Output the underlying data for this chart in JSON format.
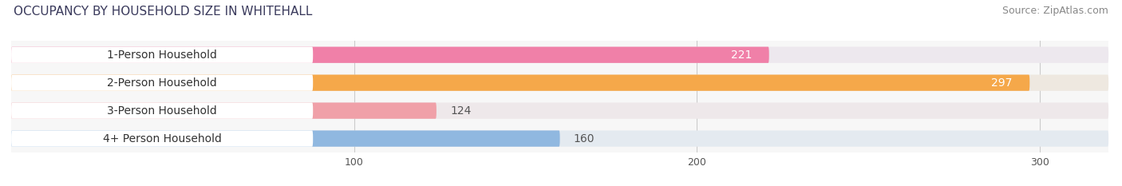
{
  "title": "OCCUPANCY BY HOUSEHOLD SIZE IN WHITEHALL",
  "source": "Source: ZipAtlas.com",
  "categories": [
    "1-Person Household",
    "2-Person Household",
    "3-Person Household",
    "4+ Person Household"
  ],
  "values": [
    221,
    297,
    124,
    160
  ],
  "bar_colors": [
    "#f080a8",
    "#f5a84a",
    "#f0a0a8",
    "#90b8e0"
  ],
  "bar_bg_colors": [
    "#ede8ee",
    "#eee8e0",
    "#eee8ea",
    "#e4eaf0"
  ],
  "xlim": [
    0,
    320
  ],
  "xticks": [
    100,
    200,
    300
  ],
  "title_fontsize": 11,
  "source_fontsize": 9,
  "label_fontsize": 10,
  "value_fontsize": 10,
  "title_color": "#3a3a5c",
  "source_color": "#888888",
  "bg_color": "#ffffff",
  "plot_bg_color": "#f0f0f0",
  "bar_row_bg": "#f7f7f7",
  "bar_height": 0.58
}
